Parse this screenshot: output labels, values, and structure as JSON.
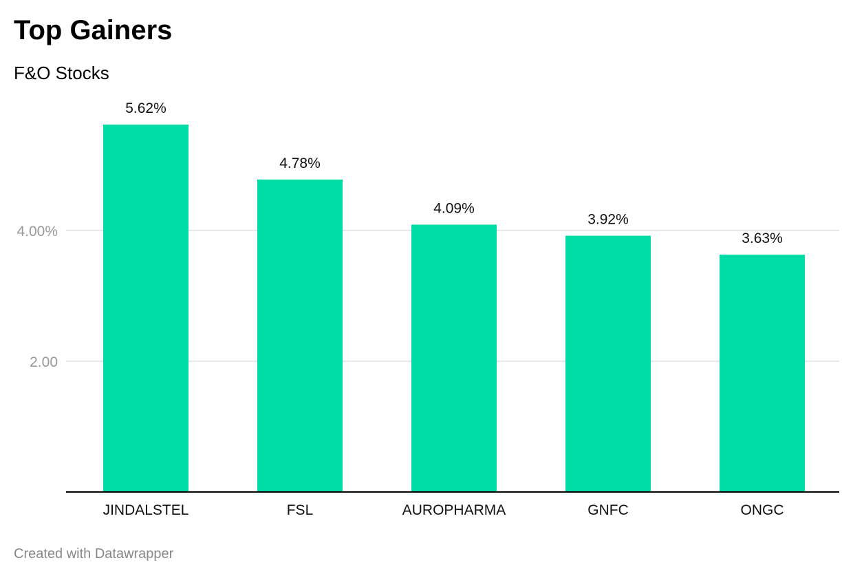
{
  "header": {
    "title": "Top Gainers",
    "subtitle": "F&O Stocks"
  },
  "footer": {
    "credit": "Created with Datawrapper"
  },
  "colors": {
    "bar": "#00dca5",
    "grid": "#e0e0e0",
    "axis": "#000000"
  },
  "chart_data": {
    "type": "bar",
    "title": "Top Gainers",
    "subtitle": "F&O Stocks",
    "categories": [
      "JINDALSTEL",
      "FSL",
      "AUROPHARMA",
      "GNFC",
      "ONGC"
    ],
    "values": [
      5.62,
      4.78,
      4.09,
      3.92,
      3.63
    ],
    "value_labels": [
      "5.62%",
      "4.78%",
      "4.09%",
      "3.92%",
      "3.63%"
    ],
    "y_ticks": [
      {
        "value": 2,
        "label": "2.00"
      },
      {
        "value": 4,
        "label": "4.00%"
      }
    ],
    "ylim": [
      0,
      5.62
    ],
    "grid": true,
    "legend": "none"
  }
}
